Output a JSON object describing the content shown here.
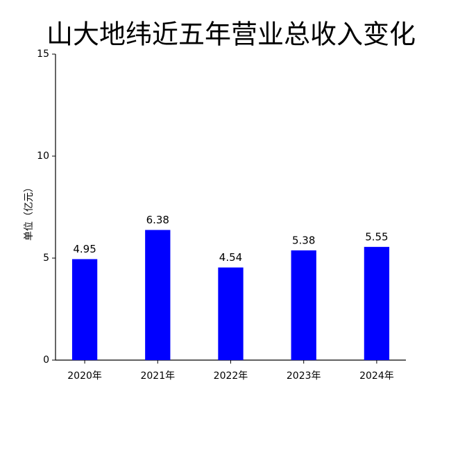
{
  "chart_data": {
    "type": "bar",
    "title": "山大地纬近五年营业总收入变化",
    "y_label": "单位（亿元）",
    "categories": [
      "2020年",
      "2021年",
      "2022年",
      "2023年",
      "2024年"
    ],
    "values": [
      4.95,
      6.38,
      4.54,
      5.38,
      5.55
    ],
    "color": "#0000ff",
    "ylim": [
      0,
      15
    ],
    "yticks": [
      0,
      5,
      10,
      15
    ],
    "grid": false
  }
}
